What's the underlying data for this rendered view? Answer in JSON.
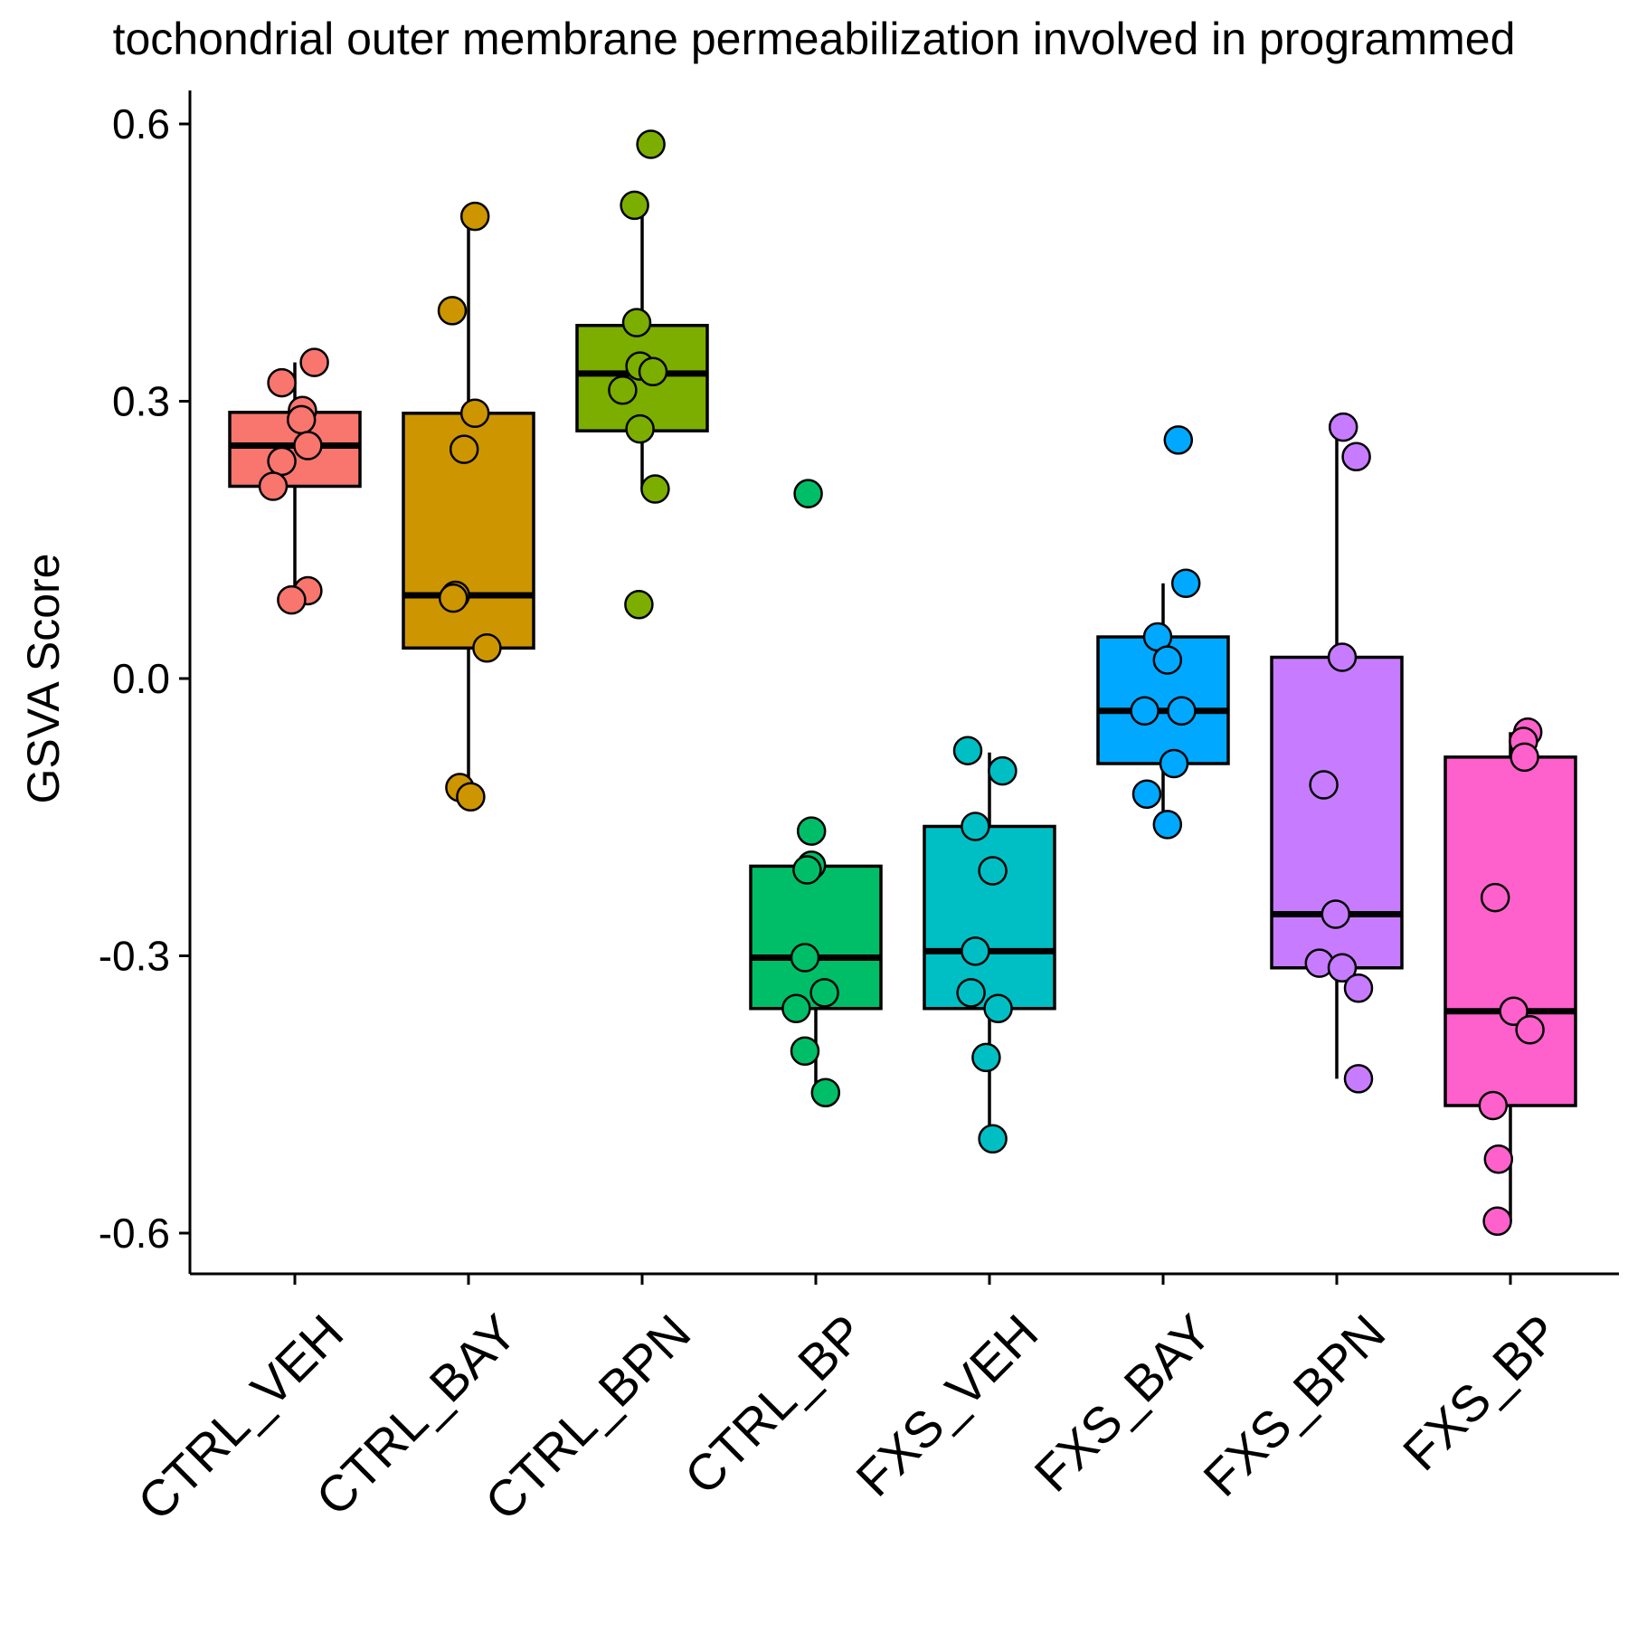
{
  "chart_data": {
    "type": "box",
    "title": "tochondrial outer membrane permeabilization involved in programmed",
    "xlabel": "",
    "ylabel": "GSVA Score",
    "ylim": [
      -0.64,
      0.64
    ],
    "yticks": [
      0.6,
      0.3,
      0.0,
      -0.3,
      -0.6
    ],
    "ytick_labels": [
      "0.6",
      "0.3",
      "0.0",
      "-0.3",
      "-0.6"
    ],
    "grid": false,
    "legend": "none",
    "categories": [
      "CTRL_VEH",
      "CTRL_BAY",
      "CTRL_BPN",
      "CTRL_BP",
      "FXS_VEH",
      "FXS_BAY",
      "FXS_BPN",
      "FXS_BP"
    ],
    "series": [
      {
        "category": "CTRL_VEH",
        "color": "#F8766D",
        "box": {
          "whisker_low": 0.085,
          "q1": 0.208,
          "median": 0.252,
          "q3": 0.288,
          "whisker_high": 0.342
        },
        "points": [
          {
            "y": 0.342,
            "dx": 0.18
          },
          {
            "y": 0.32,
            "dx": -0.12
          },
          {
            "y": 0.29,
            "dx": 0.07
          },
          {
            "y": 0.28,
            "dx": 0.06
          },
          {
            "y": 0.252,
            "dx": 0.12
          },
          {
            "y": 0.235,
            "dx": -0.12
          },
          {
            "y": 0.208,
            "dx": -0.2
          },
          {
            "y": 0.095,
            "dx": 0.12
          },
          {
            "y": 0.085,
            "dx": -0.03
          }
        ]
      },
      {
        "category": "CTRL_BAY",
        "color": "#CD9600",
        "box": {
          "whisker_low": -0.125,
          "q1": 0.033,
          "median": 0.09,
          "q3": 0.287,
          "whisker_high": 0.5
        },
        "points": [
          {
            "y": 0.5,
            "dx": 0.06
          },
          {
            "y": 0.398,
            "dx": -0.15
          },
          {
            "y": 0.287,
            "dx": 0.06
          },
          {
            "y": 0.248,
            "dx": -0.04
          },
          {
            "y": 0.09,
            "dx": -0.12
          },
          {
            "y": 0.087,
            "dx": -0.14
          },
          {
            "y": 0.033,
            "dx": 0.17
          },
          {
            "y": -0.118,
            "dx": -0.08
          },
          {
            "y": -0.128,
            "dx": 0.02
          }
        ]
      },
      {
        "category": "CTRL_BPN",
        "color": "#7CAE00",
        "box": {
          "whisker_low": 0.205,
          "q1": 0.268,
          "median": 0.33,
          "q3": 0.382,
          "whisker_high": 0.512
        },
        "points": [
          {
            "y": 0.578,
            "dx": 0.08
          },
          {
            "y": 0.512,
            "dx": -0.07
          },
          {
            "y": 0.385,
            "dx": -0.05
          },
          {
            "y": 0.338,
            "dx": -0.02
          },
          {
            "y": 0.332,
            "dx": 0.1
          },
          {
            "y": 0.312,
            "dx": -0.18
          },
          {
            "y": 0.27,
            "dx": -0.02
          },
          {
            "y": 0.205,
            "dx": 0.12
          },
          {
            "y": 0.08,
            "dx": -0.03
          }
        ]
      },
      {
        "category": "CTRL_BP",
        "color": "#00BE67",
        "box": {
          "whisker_low": -0.443,
          "q1": -0.357,
          "median": -0.302,
          "q3": -0.203,
          "whisker_high": -0.203
        },
        "points": [
          {
            "y": 0.2,
            "dx": -0.07
          },
          {
            "y": -0.165,
            "dx": -0.04
          },
          {
            "y": -0.202,
            "dx": -0.04
          },
          {
            "y": -0.207,
            "dx": -0.08
          },
          {
            "y": -0.302,
            "dx": -0.1
          },
          {
            "y": -0.34,
            "dx": 0.08
          },
          {
            "y": -0.357,
            "dx": -0.18
          },
          {
            "y": -0.403,
            "dx": -0.1
          },
          {
            "y": -0.448,
            "dx": 0.09
          }
        ]
      },
      {
        "category": "FXS_VEH",
        "color": "#00BFC4",
        "box": {
          "whisker_low": -0.498,
          "q1": -0.357,
          "median": -0.295,
          "q3": -0.16,
          "whisker_high": -0.08
        },
        "points": [
          {
            "y": -0.078,
            "dx": -0.2
          },
          {
            "y": -0.1,
            "dx": 0.12
          },
          {
            "y": -0.16,
            "dx": -0.13
          },
          {
            "y": -0.208,
            "dx": 0.03
          },
          {
            "y": -0.295,
            "dx": -0.13
          },
          {
            "y": -0.34,
            "dx": -0.17
          },
          {
            "y": -0.357,
            "dx": 0.08
          },
          {
            "y": -0.41,
            "dx": -0.03
          },
          {
            "y": -0.498,
            "dx": 0.03
          }
        ]
      },
      {
        "category": "FXS_BAY",
        "color": "#00A9FF",
        "box": {
          "whisker_low": -0.158,
          "q1": -0.092,
          "median": -0.035,
          "q3": 0.045,
          "whisker_high": 0.103
        },
        "points": [
          {
            "y": 0.258,
            "dx": 0.14
          },
          {
            "y": 0.103,
            "dx": 0.21
          },
          {
            "y": 0.045,
            "dx": -0.05
          },
          {
            "y": 0.02,
            "dx": 0.04
          },
          {
            "y": -0.035,
            "dx": -0.17
          },
          {
            "y": -0.035,
            "dx": 0.17
          },
          {
            "y": -0.092,
            "dx": 0.1
          },
          {
            "y": -0.125,
            "dx": -0.15
          },
          {
            "y": -0.158,
            "dx": 0.04
          }
        ]
      },
      {
        "category": "FXS_BPN",
        "color": "#C77CFF",
        "box": {
          "whisker_low": -0.433,
          "q1": -0.313,
          "median": -0.255,
          "q3": 0.023,
          "whisker_high": 0.272
        },
        "points": [
          {
            "y": 0.272,
            "dx": 0.06
          },
          {
            "y": 0.24,
            "dx": 0.18
          },
          {
            "y": 0.023,
            "dx": 0.05
          },
          {
            "y": -0.115,
            "dx": -0.12
          },
          {
            "y": -0.255,
            "dx": -0.01
          },
          {
            "y": -0.308,
            "dx": -0.16
          },
          {
            "y": -0.313,
            "dx": 0.05
          },
          {
            "y": -0.335,
            "dx": 0.2
          },
          {
            "y": -0.433,
            "dx": 0.2
          }
        ]
      },
      {
        "category": "FXS_BP",
        "color": "#FF61CC",
        "box": {
          "whisker_low": -0.587,
          "q1": -0.462,
          "median": -0.36,
          "q3": -0.085,
          "whisker_high": -0.058
        },
        "points": [
          {
            "y": -0.058,
            "dx": 0.16
          },
          {
            "y": -0.068,
            "dx": 0.12
          },
          {
            "y": -0.085,
            "dx": 0.13
          },
          {
            "y": -0.237,
            "dx": -0.14
          },
          {
            "y": -0.36,
            "dx": 0.03
          },
          {
            "y": -0.38,
            "dx": 0.18
          },
          {
            "y": -0.462,
            "dx": -0.16
          },
          {
            "y": -0.52,
            "dx": -0.11
          },
          {
            "y": -0.587,
            "dx": -0.12
          }
        ]
      }
    ]
  }
}
